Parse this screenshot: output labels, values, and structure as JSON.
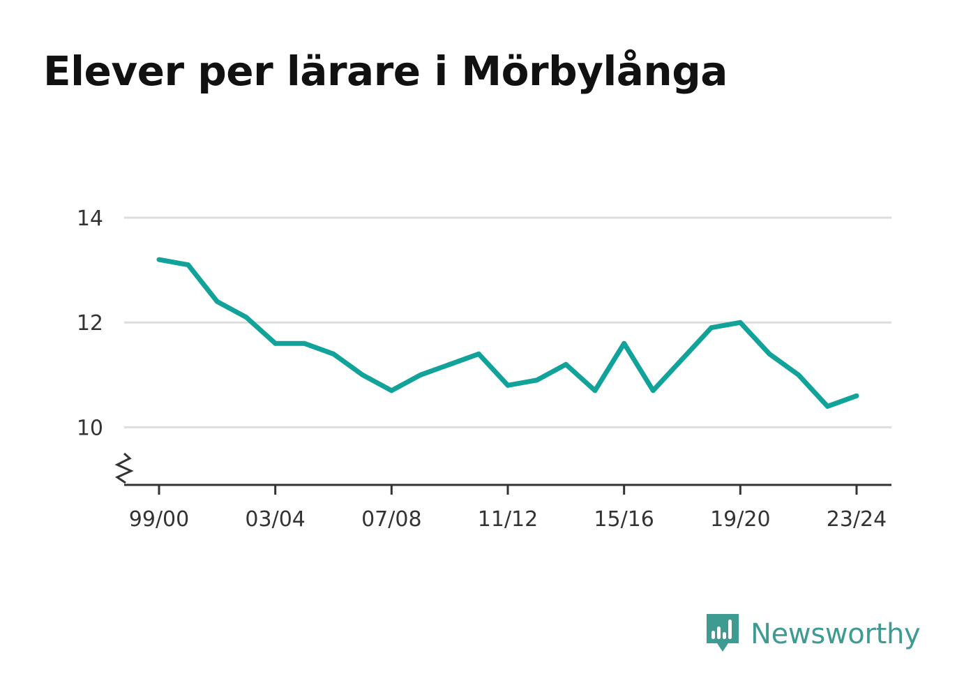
{
  "title": "Elever per lärare i Mörbylånga",
  "brand": {
    "name": "Newsworthy",
    "logo_icon": "newsworthy-logo-icon",
    "color": "#3d9b91"
  },
  "chart_data": {
    "type": "line",
    "title": "Elever per lärare i Mörbylånga",
    "xlabel": "",
    "ylabel": "",
    "x": [
      "99/00",
      "00/01",
      "01/02",
      "02/03",
      "03/04",
      "04/05",
      "05/06",
      "06/07",
      "07/08",
      "08/09",
      "09/10",
      "10/11",
      "11/12",
      "12/13",
      "13/14",
      "14/15",
      "15/16",
      "16/17",
      "17/18",
      "18/19",
      "19/20",
      "20/21",
      "21/22",
      "22/23",
      "23/24"
    ],
    "x_tick_labels": [
      "99/00",
      "03/04",
      "07/08",
      "11/12",
      "15/16",
      "19/20",
      "23/24"
    ],
    "series": [
      {
        "values": [
          13.2,
          13.1,
          12.4,
          12.1,
          11.6,
          11.6,
          11.4,
          11.0,
          10.7,
          11.0,
          11.2,
          11.4,
          10.8,
          10.9,
          11.2,
          10.7,
          11.6,
          10.7,
          11.3,
          11.9,
          12.0,
          11.4,
          11.0,
          10.4,
          10.6
        ],
        "color": "#11a39a"
      }
    ],
    "y_ticks": [
      10,
      12,
      14
    ],
    "ylim": [
      8.9,
      14
    ],
    "y_axis_break": true,
    "grid": true,
    "grid_color": "#dddddd",
    "axis_color": "#333333"
  }
}
